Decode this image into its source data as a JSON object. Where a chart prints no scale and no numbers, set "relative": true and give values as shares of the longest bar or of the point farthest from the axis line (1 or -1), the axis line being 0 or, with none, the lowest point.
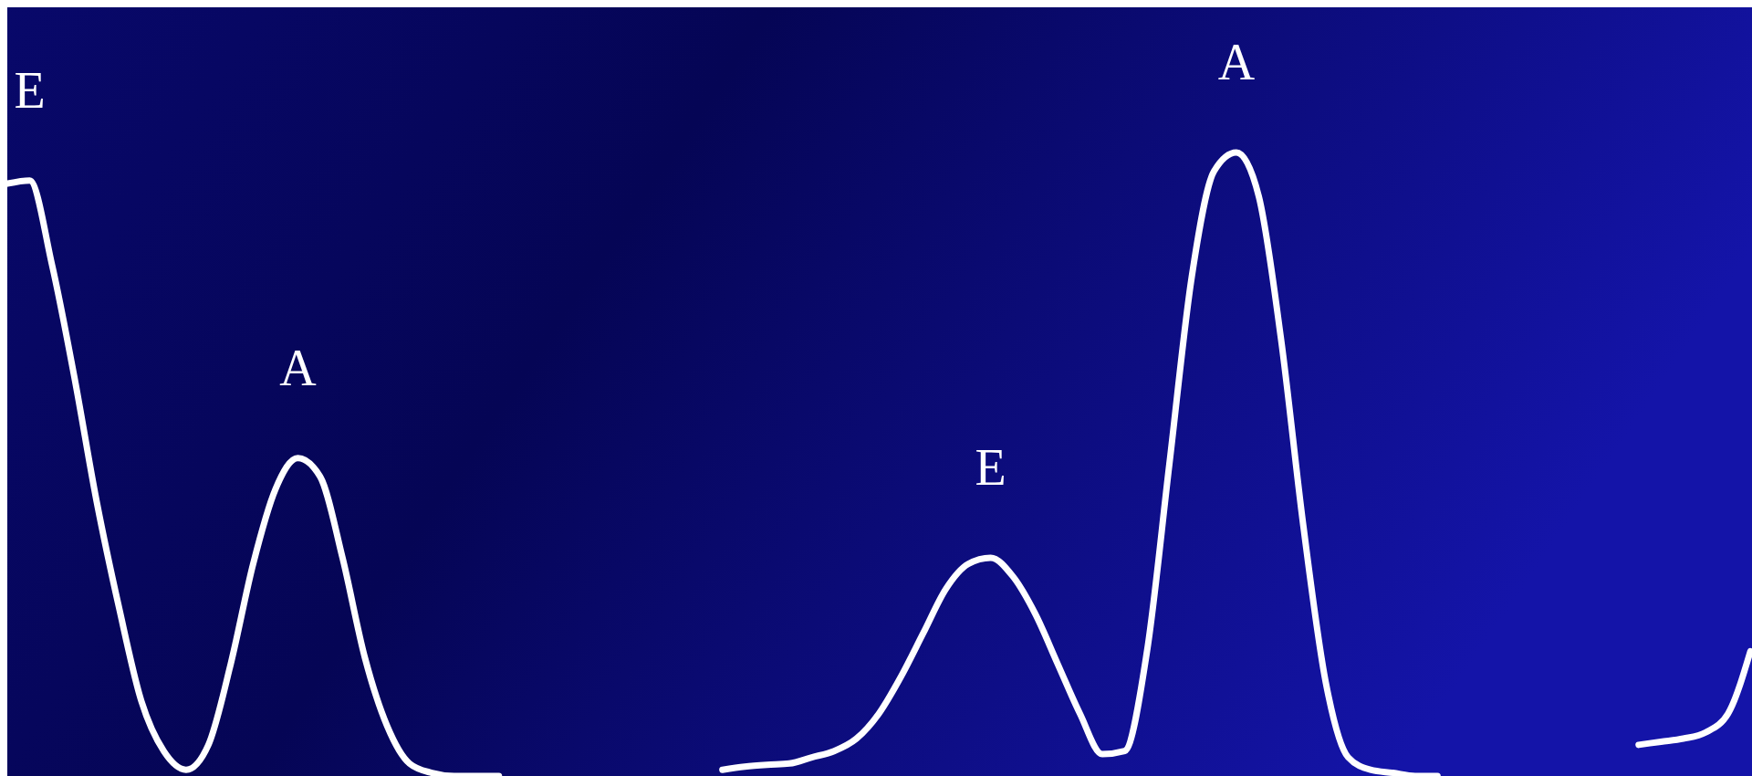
{
  "chart_data": {
    "type": "line",
    "relative": true,
    "categories": [
      null,
      null,
      null,
      null,
      null,
      null,
      null,
      null,
      null,
      null,
      null,
      null,
      null,
      null,
      null,
      null,
      null,
      null,
      null,
      null,
      null,
      null,
      null,
      null,
      null,
      null,
      null,
      null,
      null,
      null,
      null,
      null,
      null,
      null,
      null,
      null,
      null,
      null,
      null,
      null,
      null,
      null,
      null,
      null,
      null,
      null,
      null,
      null,
      null,
      null,
      null,
      null,
      null,
      null,
      null,
      null,
      null,
      null,
      null,
      null,
      null,
      null,
      null,
      null,
      null,
      null,
      null,
      null,
      null,
      null,
      null,
      null,
      null,
      null,
      null,
      null,
      null,
      null,
      null
    ],
    "series": [
      {
        "color": "#ffffff",
        "values": [
          0.95,
          0.955,
          0.82,
          0.64,
          0.44,
          0.27,
          0.12,
          0.04,
          0.01,
          0.05,
          0.18,
          0.34,
          0.46,
          0.51,
          0.48,
          0.35,
          0.19,
          0.08,
          0.02,
          0.005,
          0,
          0,
          0,
          null,
          null,
          null,
          null,
          null,
          null,
          null,
          null,
          null,
          null,
          null,
          null,
          null,
          null,
          null,
          null,
          null,
          null,
          null,
          null,
          null,
          null,
          null,
          null,
          null,
          null,
          null,
          null,
          null,
          null,
          null,
          null,
          null,
          null,
          null,
          null,
          null,
          null,
          null,
          null,
          null,
          null,
          null,
          null,
          null,
          null,
          null,
          null,
          null,
          null,
          null,
          null,
          null,
          null,
          null,
          null
        ]
      },
      {
        "color": "#ffffff",
        "values": [
          null,
          null,
          null,
          null,
          null,
          null,
          null,
          null,
          null,
          null,
          null,
          null,
          null,
          null,
          null,
          null,
          null,
          null,
          null,
          null,
          null,
          null,
          null,
          null,
          null,
          null,
          null,
          null,
          null,
          null,
          null,
          null,
          0.01,
          0.015,
          0.018,
          0.02,
          0.03,
          0.04,
          0.06,
          0.1,
          0.16,
          0.23,
          0.3,
          0.34,
          0.35,
          0.32,
          0.26,
          0.18,
          0.1,
          0.035,
          0.04,
          0.2,
          0.5,
          0.8,
          0.97,
          1,
          0.93,
          0.7,
          0.4,
          0.15,
          0.03,
          0.01,
          0.005,
          0,
          0,
          null,
          null,
          null,
          null,
          null,
          null,
          null,
          null,
          null,
          null,
          null,
          null,
          null,
          null
        ]
      },
      {
        "color": "#ffffff",
        "values": [
          null,
          null,
          null,
          null,
          null,
          null,
          null,
          null,
          null,
          null,
          null,
          null,
          null,
          null,
          null,
          null,
          null,
          null,
          null,
          null,
          null,
          null,
          null,
          null,
          null,
          null,
          null,
          null,
          null,
          null,
          null,
          null,
          null,
          null,
          null,
          null,
          null,
          null,
          null,
          null,
          null,
          null,
          null,
          null,
          null,
          null,
          null,
          null,
          null,
          null,
          null,
          null,
          null,
          null,
          null,
          null,
          null,
          null,
          null,
          null,
          null,
          null,
          null,
          null,
          null,
          null,
          null,
          null,
          null,
          null,
          null,
          null,
          null,
          0.05,
          0.055,
          0.06,
          0.07,
          0.1,
          0.2
        ]
      }
    ],
    "annotations": [
      "E",
      "A",
      "E",
      "A"
    ]
  }
}
